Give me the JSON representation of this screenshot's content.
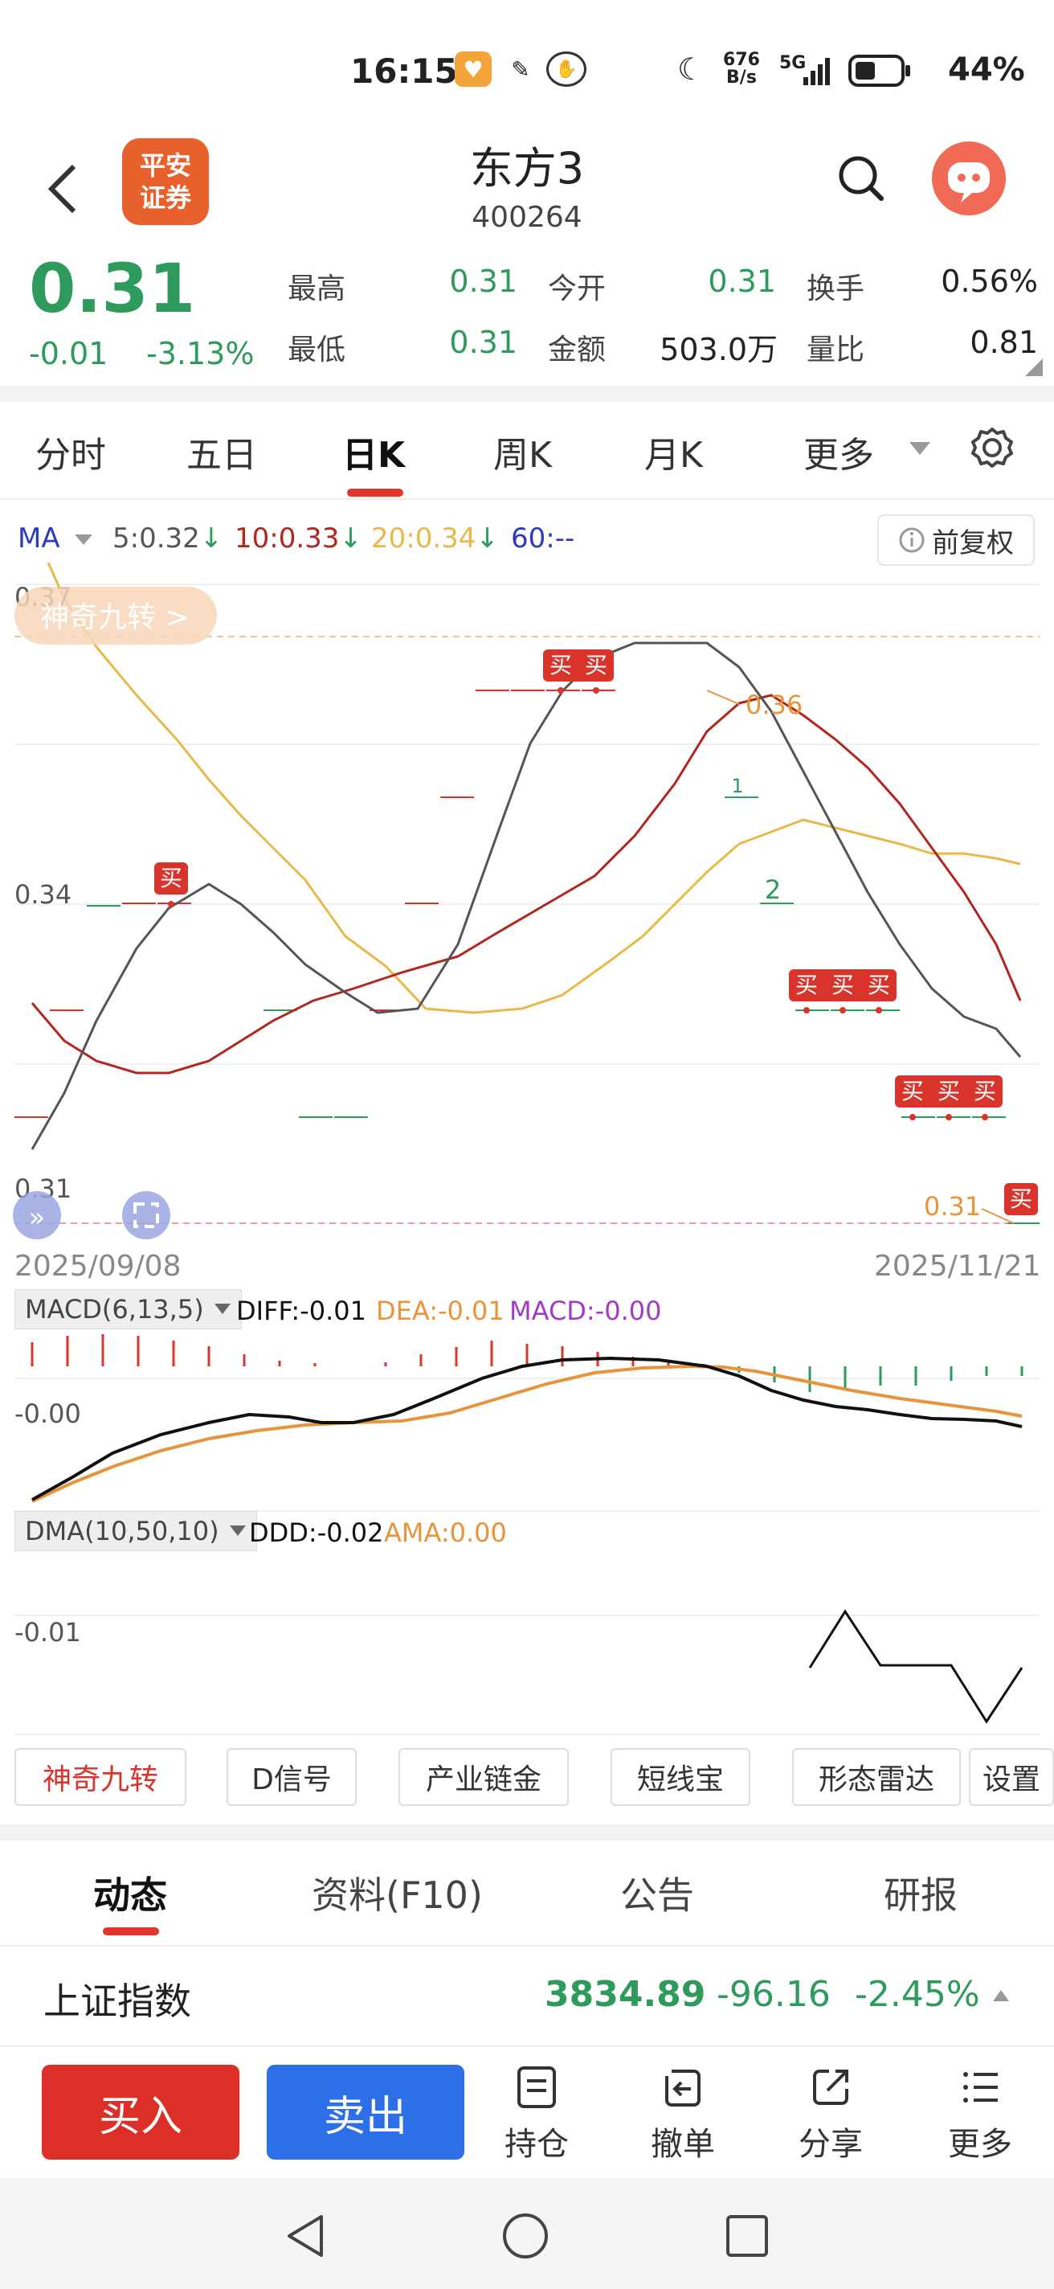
{
  "status_bar": {
    "time": "16:15",
    "network_speed_top": "676",
    "network_speed_bottom": "B/s",
    "signal": "5G",
    "battery": "44%",
    "icons": [
      "app-notification-icon",
      "feather-icon",
      "hand-icon",
      "moon-icon",
      "signal-icon",
      "battery-icon"
    ]
  },
  "header": {
    "logo_line1": "平安",
    "logo_line2": "证券",
    "title": "东方3",
    "code": "400264"
  },
  "quote": {
    "price": "0.31",
    "change": "-0.01",
    "change_pct": "-3.13%",
    "fields": [
      {
        "label": "最高",
        "value": "0.31",
        "color": "#2e9a5b"
      },
      {
        "label": "今开",
        "value": "0.31",
        "color": "#2e9a5b"
      },
      {
        "label": "换手",
        "value": "0.56%",
        "color": "#222222"
      },
      {
        "label": "最低",
        "value": "0.31",
        "color": "#2e9a5b"
      },
      {
        "label": "金额",
        "value": "503.0万",
        "color": "#222222"
      },
      {
        "label": "量比",
        "value": "0.81",
        "color": "#222222"
      }
    ]
  },
  "tabs": {
    "items": [
      "分时",
      "五日",
      "日K",
      "周K",
      "月K",
      "更多"
    ],
    "active": "日K"
  },
  "ma_legend": {
    "label": "MA",
    "ma5": "5:0.32",
    "ma10": "10:0.33",
    "ma20": "20:0.34",
    "ma60": "60:--",
    "fq_label": "前复权"
  },
  "chart_labels": {
    "y_top": "0.37",
    "y_mid": "0.34",
    "y_bottom": "0.31",
    "nine_turn": "神奇九转 >",
    "peak_label": "0.36",
    "low_label": "0.31",
    "start_date": "2025/09/08",
    "end_date": "2025/11/21",
    "buy_mark": "买",
    "count_1": "1",
    "count_2": "2"
  },
  "macd": {
    "name": "MACD(6,13,5)",
    "diff": "DIFF:-0.01",
    "dea": "DEA:-0.01",
    "macd": "MACD:-0.00",
    "axis": "-0.00"
  },
  "dma": {
    "name": "DMA(10,50,10)",
    "ddd": "DDD:-0.02",
    "ama": "AMA:0.00",
    "axis": "-0.01"
  },
  "tool_buttons": [
    "神奇九转",
    "D信号",
    "产业链金",
    "短线宝",
    "形态雷达",
    "设置"
  ],
  "bottom_tabs": {
    "items": [
      "动态",
      "资料(F10)",
      "公告",
      "研报"
    ],
    "active": "动态"
  },
  "index_row": {
    "name": "上证指数",
    "value": "3834.89",
    "change": "-96.16",
    "pct": "-2.45%"
  },
  "action_bar": {
    "buy": "买入",
    "sell": "卖出",
    "holdings": "持仓",
    "cancel": "撤单",
    "share": "分享",
    "more": "更多"
  },
  "colors": {
    "up_red": "#d9342b",
    "down_green": "#2e9a5b",
    "ma5": "#666666",
    "ma10": "#b3261e",
    "ma20": "#e8b84a",
    "ma60": "#2b3bbf",
    "dea": "#e8943a",
    "macd": "#a13bc7"
  }
}
